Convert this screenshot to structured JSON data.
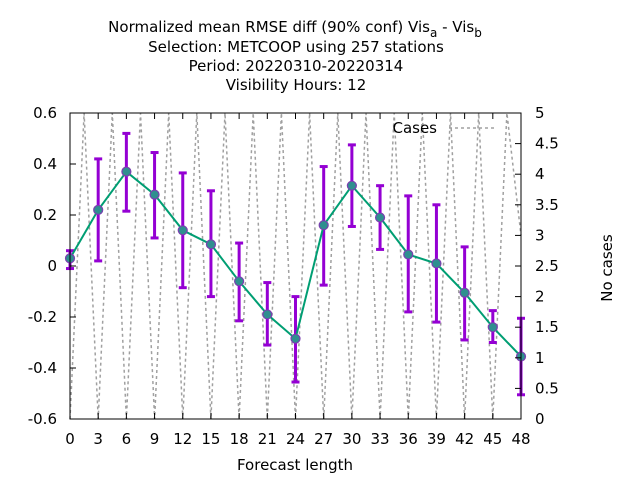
{
  "chart_data": {
    "type": "line",
    "title": {
      "line1_pre": "Normalized mean RMSE diff (90% conf) Vis",
      "line1_sub_a": "a",
      "line1_mid": " - Vis",
      "line1_sub_b": "b",
      "line2": "Selection: METCOOP using   257 stations",
      "line3": "Period: 20220310-20220314",
      "line4": "Visibility   Hours:  12"
    },
    "xlabel": "Forecast length",
    "ylabel": "",
    "y2label": "No cases",
    "xlim": [
      0,
      48
    ],
    "ylim": [
      -0.6,
      0.6
    ],
    "y2lim": [
      0,
      5
    ],
    "x_ticks": [
      "0",
      "3",
      "6",
      "9",
      "12",
      "15",
      "18",
      "21",
      "24",
      "27",
      "30",
      "33",
      "36",
      "39",
      "42",
      "45",
      "48"
    ],
    "y_ticks": [
      "0.6",
      "0.4",
      "0.2",
      "0",
      "-0.2",
      "-0.4",
      "-0.6"
    ],
    "y2_ticks": [
      "5",
      "4.5",
      "4",
      "3.5",
      "3",
      "2.5",
      "2",
      "1.5",
      "1",
      "0.5",
      "0"
    ],
    "legend": {
      "label": "Cases",
      "position": "top-right"
    },
    "series": [
      {
        "x": [
          0,
          3,
          6,
          9,
          12,
          15,
          18,
          21,
          24,
          27,
          30,
          33,
          36,
          39,
          42,
          45,
          48
        ],
        "y": [
          0.03,
          0.22,
          0.37,
          0.28,
          0.14,
          0.085,
          -0.06,
          -0.19,
          -0.285,
          0.16,
          0.315,
          0.19,
          0.045,
          0.01,
          -0.105,
          -0.24,
          -0.355
        ],
        "err_low": [
          -0.01,
          0.02,
          0.215,
          0.11,
          -0.085,
          -0.12,
          -0.215,
          -0.31,
          -0.455,
          -0.075,
          0.155,
          0.065,
          -0.18,
          -0.22,
          -0.29,
          -0.3,
          -0.505
        ],
        "err_high": [
          0.06,
          0.42,
          0.52,
          0.445,
          0.365,
          0.295,
          0.09,
          -0.065,
          -0.12,
          0.39,
          0.475,
          0.315,
          0.275,
          0.24,
          0.075,
          -0.175,
          -0.205
        ],
        "color": "#009e73",
        "errcolor": "#9400d3"
      },
      {
        "name": "Cases",
        "axis": "y2",
        "x": [
          0,
          1.5,
          3,
          4.5,
          6,
          7.5,
          9,
          10.5,
          12,
          13.5,
          15,
          16.5,
          18,
          19.5,
          21,
          22.5,
          24,
          25.5,
          27,
          28.5,
          30,
          31.5,
          33,
          34.5,
          36,
          37.5,
          39,
          40.5,
          42,
          43.5,
          45,
          46.5,
          48
        ],
        "y": [
          0,
          5,
          0,
          5,
          0,
          5,
          0,
          5,
          0,
          5,
          0,
          5,
          0,
          5,
          0,
          5,
          0,
          5,
          0,
          5,
          0,
          5,
          0,
          5,
          0,
          5,
          0,
          5,
          0,
          5,
          0,
          5,
          3
        ],
        "color": "#a0a0a0",
        "dash": true
      }
    ],
    "grid": false
  }
}
